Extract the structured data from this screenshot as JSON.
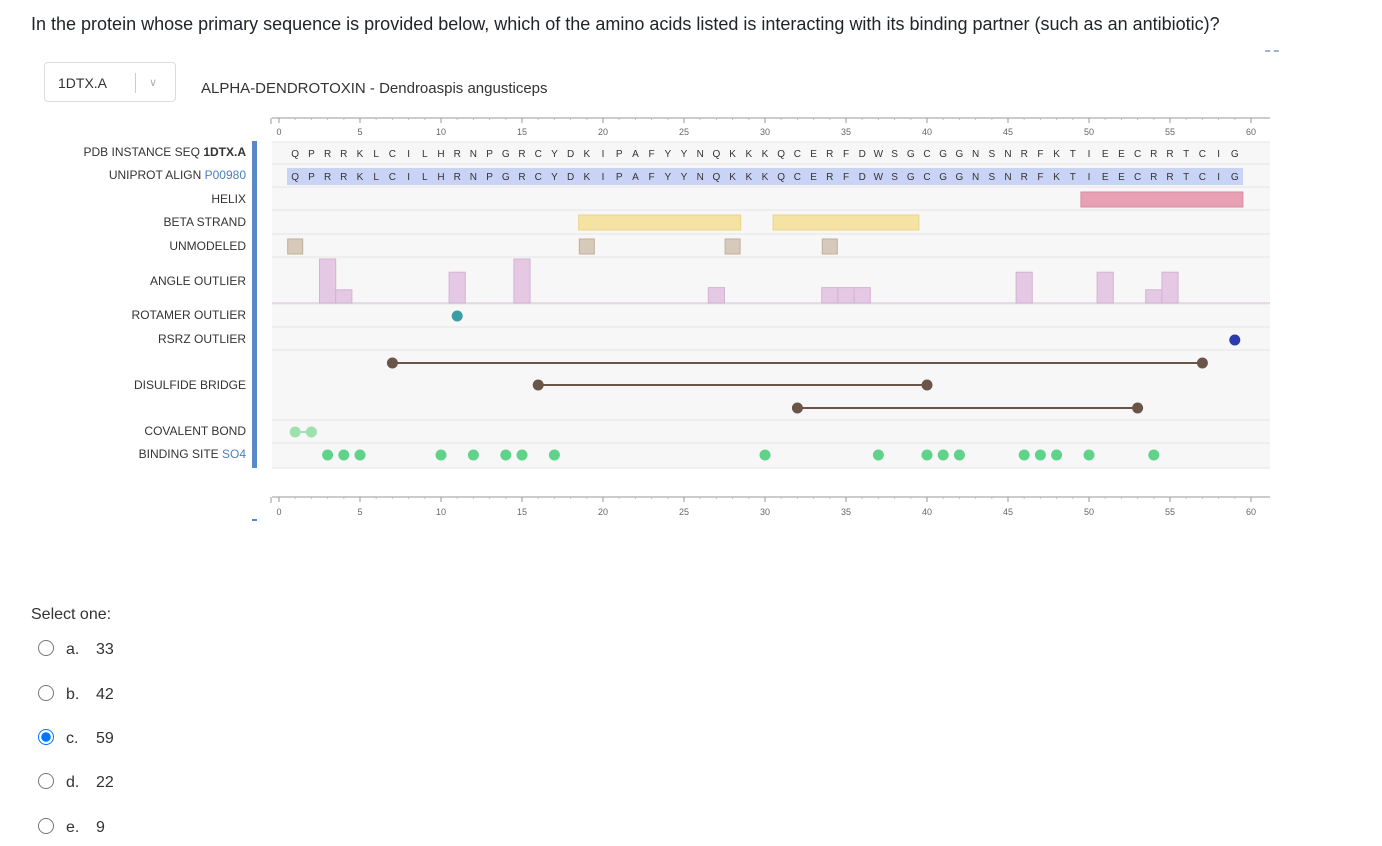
{
  "question": "In the protein whose primary sequence is provided below, which of the amino acids listed is interacting with its binding partner (such as an antibiotic)?",
  "viewer": {
    "entity_select": "1DTX.A",
    "entity_title": "ALPHA-DENDROTOXIN - Dendroaspis angusticeps",
    "axis_ticks": [
      "0",
      "5",
      "10",
      "15",
      "20",
      "25",
      "30",
      "35",
      "40",
      "45",
      "50",
      "55",
      "60"
    ],
    "sequence": "QPRRKLCILHRNPGRCYDKIPAFYYNQKKKQCERFDWSGCGGNSNRFKTIEECRRTCIG",
    "labels": {
      "pdb_seq_prefix": "PDB INSTANCE SEQ ",
      "pdb_seq_id": "1DTX.A",
      "uniprot_prefix": "UNIPROT ALIGN ",
      "uniprot_id": "P00980",
      "helix": "HELIX",
      "beta_strand": "BETA STRAND",
      "unmodeled": "UNMODELED",
      "angle_outlier": "ANGLE OUTLIER",
      "rotamer_outlier": "ROTAMER OUTLIER",
      "rsrz_outlier": "RSRZ OUTLIER",
      "disulfide_bridge": "DISULFIDE BRIDGE",
      "covalent_bond": "COVALENT BOND",
      "binding_site_prefix": "BINDING SITE ",
      "binding_site_id": "SO4"
    },
    "tracks": {
      "helix": [
        [
          50,
          59
        ]
      ],
      "beta_strand": [
        [
          19,
          28
        ],
        [
          31,
          39
        ]
      ],
      "unmodeled": [
        1,
        19,
        28,
        34
      ],
      "angle_outlier": [
        {
          "pos": 3,
          "level": 1.0
        },
        {
          "pos": 4,
          "level": 0.3
        },
        {
          "pos": 11,
          "level": 0.7
        },
        {
          "pos": 15,
          "level": 1.0
        },
        {
          "pos": 27,
          "level": 0.35
        },
        {
          "pos": 34,
          "level": 0.35
        },
        {
          "pos": 35,
          "level": 0.35
        },
        {
          "pos": 36,
          "level": 0.35
        },
        {
          "pos": 46,
          "level": 0.7
        },
        {
          "pos": 51,
          "level": 0.7
        },
        {
          "pos": 54,
          "level": 0.3
        },
        {
          "pos": 55,
          "level": 0.7
        }
      ],
      "rotamer_outlier": [
        11
      ],
      "rsrz_outlier": [
        59
      ],
      "disulfide_bridge": [
        [
          7,
          57
        ],
        [
          16,
          40
        ],
        [
          32,
          53
        ]
      ],
      "covalent_bond": [
        [
          1,
          2
        ]
      ],
      "binding_site": [
        3,
        4,
        5,
        10,
        12,
        14,
        15,
        17,
        30,
        37,
        40,
        41,
        42,
        46,
        47,
        48,
        50,
        54
      ]
    },
    "colors": {
      "helix": "#e8a0b4",
      "beta_strand": "#f5e3a3",
      "unmodeled": "#d8cabb",
      "angle_outlier": "#e4c8e4",
      "rotamer_outlier": "#3a9ea5",
      "rsrz_outlier": "#2d3bb0",
      "disulfide": "#6b5549",
      "covalent": "#9ee0b0",
      "binding": "#5fd38a",
      "uniprot_bg": "#c9d3f5",
      "accent": "#0d6efd"
    }
  },
  "prompt_label": "Select one:",
  "options": [
    {
      "letter": "a.",
      "value": "33",
      "selected": false
    },
    {
      "letter": "b.",
      "value": "42",
      "selected": false
    },
    {
      "letter": "c.",
      "value": "59",
      "selected": true
    },
    {
      "letter": "d.",
      "value": "22",
      "selected": false
    },
    {
      "letter": "e.",
      "value": "9",
      "selected": false
    }
  ]
}
